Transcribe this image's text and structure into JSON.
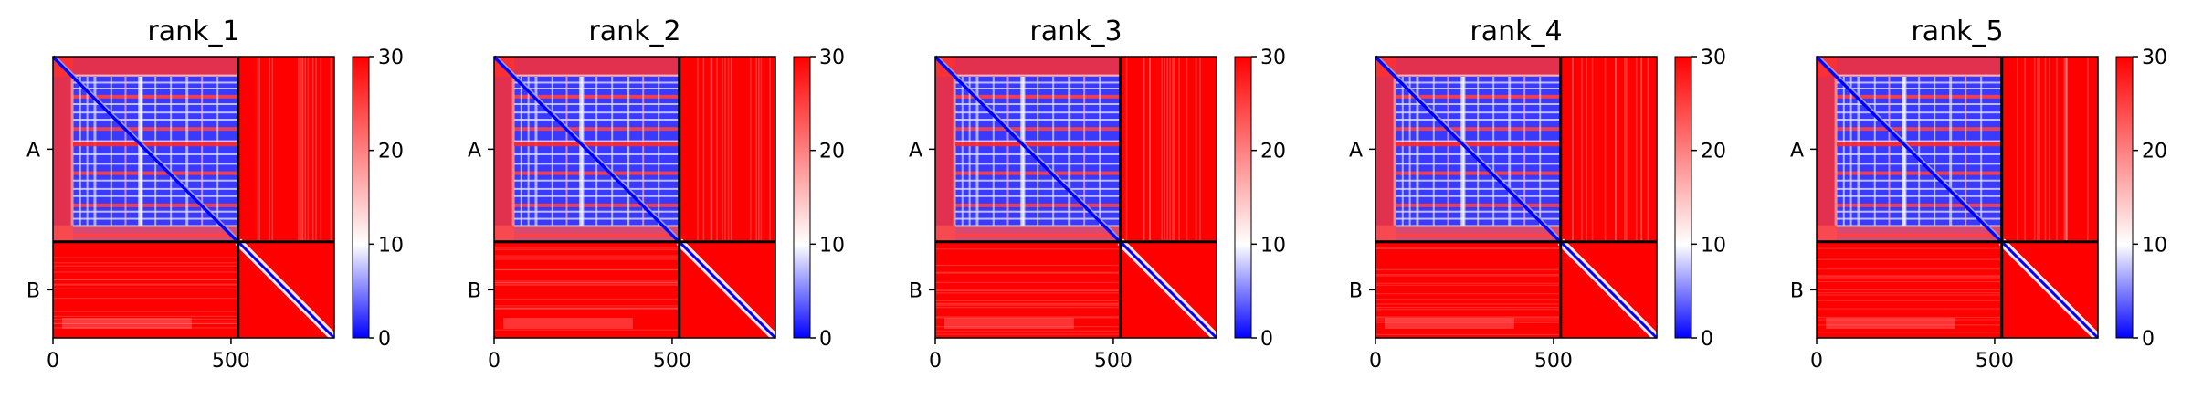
{
  "chart_data": {
    "type": "heatmap",
    "colorbar": {
      "ticks": [
        "0",
        "10",
        "20",
        "30"
      ],
      "min": 0,
      "max": 30,
      "colors": [
        "#0000ff",
        "#ffffff",
        "#ff0000"
      ]
    },
    "chain_boundary": 520,
    "x_max": 790,
    "x_ticks": [
      {
        "value": 0,
        "label": "0"
      },
      {
        "value": 500,
        "label": "500"
      }
    ],
    "y_ticks": [
      {
        "label": "A"
      },
      {
        "label": "B"
      }
    ],
    "panels": [
      {
        "title": "rank_1"
      },
      {
        "title": "rank_2"
      },
      {
        "title": "rank_3"
      },
      {
        "title": "rank_4"
      },
      {
        "title": "rank_5"
      }
    ]
  }
}
